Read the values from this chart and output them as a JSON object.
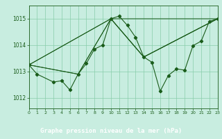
{
  "title": "Graphe pression niveau de la mer (hPa)",
  "bg_color": "#c8ede0",
  "plot_bg": "#c8ede0",
  "grid_color": "#88ccaa",
  "line_color": "#1a5c1a",
  "label_bar_color": "#2d6b2d",
  "label_text_color": "#ffffff",
  "xlim": [
    0,
    23
  ],
  "ylim": [
    1011.6,
    1015.5
  ],
  "yticks": [
    1012,
    1013,
    1014,
    1015
  ],
  "xtick_labels": [
    "0",
    "1",
    "2",
    "3",
    "4",
    "5",
    "6",
    "7",
    "8",
    "9",
    "10",
    "11",
    "12",
    "13",
    "14",
    "15",
    "16",
    "17",
    "18",
    "19",
    "20",
    "21",
    "22",
    "23"
  ],
  "series_zigzag": {
    "x": [
      0,
      1,
      3,
      4,
      5,
      6,
      7,
      8,
      9,
      10,
      11,
      12,
      13,
      14,
      15,
      16,
      17,
      18,
      19,
      20,
      21,
      22,
      23
    ],
    "y": [
      1013.25,
      1012.9,
      1012.6,
      1012.65,
      1012.3,
      1012.9,
      1013.3,
      1013.85,
      1014.0,
      1015.0,
      1015.1,
      1014.75,
      1014.3,
      1013.55,
      1013.35,
      1012.25,
      1012.85,
      1013.1,
      1013.05,
      1013.98,
      1014.15,
      1014.9,
      1015.0
    ]
  },
  "series_straight": [
    {
      "x": [
        0,
        6,
        10,
        14,
        23
      ],
      "y": [
        1013.25,
        1012.9,
        1015.0,
        1013.55,
        1015.0
      ]
    },
    {
      "x": [
        0,
        6,
        10,
        14,
        23
      ],
      "y": [
        1013.25,
        1012.9,
        1015.0,
        1013.55,
        1015.0
      ]
    },
    {
      "x": [
        0,
        10,
        14,
        23
      ],
      "y": [
        1013.25,
        1015.0,
        1013.55,
        1015.0
      ]
    },
    {
      "x": [
        0,
        10,
        23
      ],
      "y": [
        1013.25,
        1015.0,
        1015.0
      ]
    }
  ]
}
